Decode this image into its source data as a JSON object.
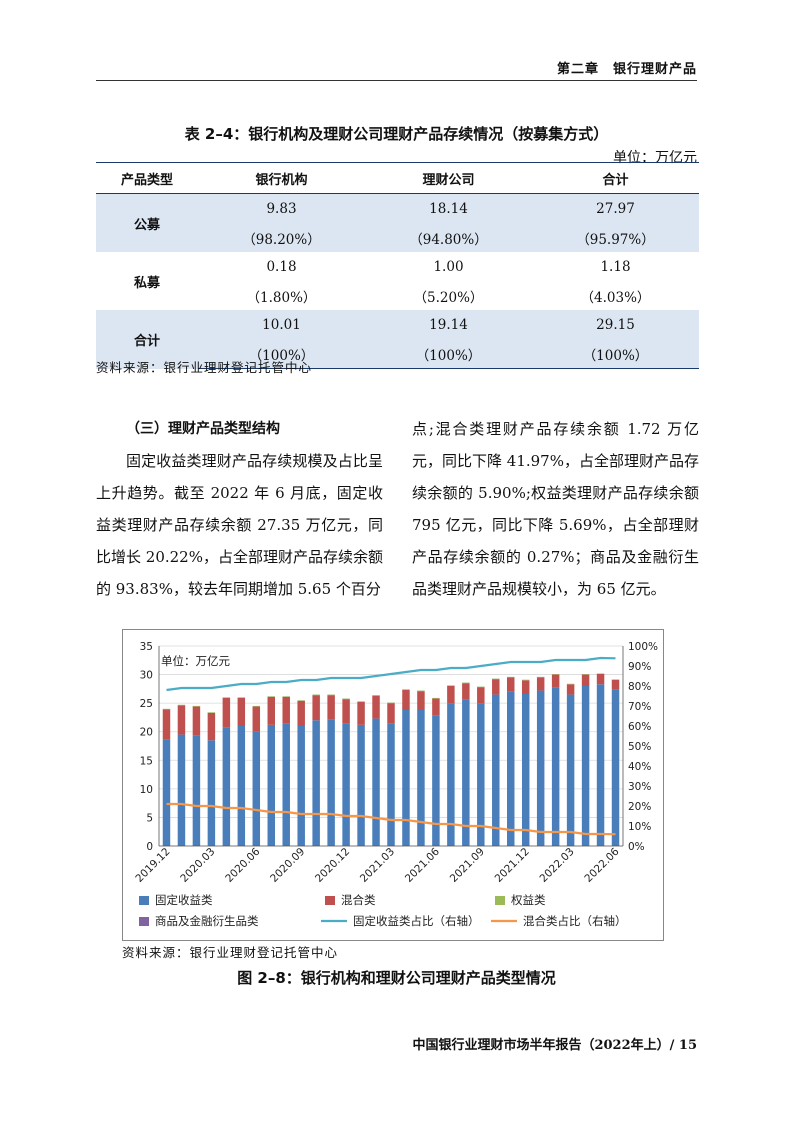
{
  "header": {
    "chapter": "第二章　银行理财产品"
  },
  "table": {
    "title": "表 2–4：银行机构及理财公司理财产品存续情况（按募集方式）",
    "unit": "单位：万亿元",
    "columns": [
      "产品类型",
      "银行机构",
      "理财公司",
      "合计"
    ],
    "rows": [
      {
        "label": "公募",
        "bank": "9.83",
        "bank_pct": "（98.20%）",
        "wm": "18.14",
        "wm_pct": "（94.80%）",
        "total": "27.97",
        "total_pct": "（95.97%）"
      },
      {
        "label": "私募",
        "bank": "0.18",
        "bank_pct": "（1.80%）",
        "wm": "1.00",
        "wm_pct": "（5.20%）",
        "total": "1.18",
        "total_pct": "（4.03%）"
      },
      {
        "label": "合计",
        "bank": "10.01",
        "bank_pct": "（100%）",
        "wm": "19.14",
        "wm_pct": "（100%）",
        "total": "29.15",
        "total_pct": "（100%）"
      }
    ],
    "source": "资料来源：银行业理财登记托管中心"
  },
  "body": {
    "subheading": "（三）理财产品类型结构",
    "paragraph_left": "固定收益类理财产品存续规模及占比呈上升趋势。截至 2022 年 6 月底，固定收益类理财产品存续余额 27.35 万亿元，同比增长 20.22%，占全部理财产品存续余额的 93.83%，较去年同期增加 5.65 个百分",
    "paragraph_right": "点;混合类理财产品存续余额 1.72 万亿元，同比下降 41.97%，占全部理财产品存续余额的 5.90%;权益类理财产品存续余额 795 亿元，同比下降 5.69%，占全部理财产品存续余额的 0.27%；商品及金融衍生品类理财产品规模较小，为 65 亿元。"
  },
  "chart_data": {
    "type": "bar",
    "unit_label": "单位：万亿元",
    "categories": [
      "2019.12",
      "2020.01",
      "2020.02",
      "2020.03",
      "2020.04",
      "2020.05",
      "2020.06",
      "2020.07",
      "2020.08",
      "2020.09",
      "2020.10",
      "2020.11",
      "2020.12",
      "2021.01",
      "2021.02",
      "2021.03",
      "2021.04",
      "2021.05",
      "2021.06",
      "2021.07",
      "2021.08",
      "2021.09",
      "2021.10",
      "2021.11",
      "2021.12",
      "2022.01",
      "2022.02",
      "2022.03",
      "2022.04",
      "2022.05",
      "2022.06"
    ],
    "x_tick_labels": [
      "2019.12",
      "2020.03",
      "2020.06",
      "2020.09",
      "2020.12",
      "2021.03",
      "2021.06",
      "2021.09",
      "2021.12",
      "2022.03",
      "2022.06"
    ],
    "series": [
      {
        "name": "固定收益类",
        "axis": "left",
        "kind": "bar",
        "color": "#4a7ebb",
        "values": [
          18.7,
          19.5,
          19.4,
          18.5,
          20.7,
          21.0,
          20.0,
          21.2,
          21.5,
          21.0,
          22.0,
          22.2,
          21.5,
          21.2,
          22.3,
          21.5,
          23.8,
          23.8,
          22.8,
          25.0,
          25.6,
          25.0,
          26.5,
          27.0,
          26.6,
          27.2,
          27.8,
          26.5,
          28.0,
          28.3,
          27.35
        ]
      },
      {
        "name": "混合类",
        "axis": "left",
        "kind": "bar",
        "color": "#c0504d",
        "values": [
          5.2,
          5.1,
          5.0,
          4.8,
          5.2,
          4.9,
          4.4,
          4.9,
          4.6,
          4.4,
          4.4,
          4.2,
          4.2,
          4.0,
          4.0,
          3.5,
          3.5,
          3.3,
          3.0,
          3.0,
          2.9,
          2.8,
          2.7,
          2.5,
          2.4,
          2.3,
          2.2,
          1.8,
          2.0,
          1.8,
          1.72
        ]
      },
      {
        "name": "权益类",
        "axis": "left",
        "kind": "bar",
        "color": "#9bbb59",
        "values": [
          0.1,
          0.1,
          0.1,
          0.1,
          0.1,
          0.1,
          0.1,
          0.1,
          0.1,
          0.1,
          0.1,
          0.1,
          0.1,
          0.1,
          0.1,
          0.1,
          0.1,
          0.1,
          0.1,
          0.09,
          0.09,
          0.09,
          0.09,
          0.09,
          0.09,
          0.09,
          0.08,
          0.08,
          0.08,
          0.08,
          0.08
        ]
      },
      {
        "name": "商品及金融衍生品类",
        "axis": "left",
        "kind": "bar",
        "color": "#8064a2",
        "values": [
          0.01,
          0.01,
          0.01,
          0.01,
          0.01,
          0.01,
          0.01,
          0.01,
          0.01,
          0.01,
          0.01,
          0.01,
          0.01,
          0.01,
          0.01,
          0.01,
          0.01,
          0.01,
          0.01,
          0.01,
          0.01,
          0.01,
          0.01,
          0.01,
          0.01,
          0.01,
          0.01,
          0.01,
          0.01,
          0.01,
          0.01
        ]
      },
      {
        "name": "固定收益类占比（右轴）",
        "axis": "right",
        "kind": "line",
        "color": "#4bacc6",
        "values": [
          0.78,
          0.79,
          0.79,
          0.79,
          0.8,
          0.81,
          0.81,
          0.82,
          0.82,
          0.83,
          0.83,
          0.84,
          0.84,
          0.84,
          0.85,
          0.86,
          0.87,
          0.88,
          0.88,
          0.89,
          0.89,
          0.9,
          0.91,
          0.92,
          0.92,
          0.92,
          0.93,
          0.93,
          0.93,
          0.94,
          0.9383
        ]
      },
      {
        "name": "混合类占比（右轴）",
        "axis": "right",
        "kind": "line",
        "color": "#f79646",
        "values": [
          0.21,
          0.21,
          0.2,
          0.2,
          0.19,
          0.19,
          0.18,
          0.17,
          0.17,
          0.16,
          0.16,
          0.16,
          0.15,
          0.15,
          0.14,
          0.13,
          0.13,
          0.12,
          0.11,
          0.11,
          0.1,
          0.1,
          0.09,
          0.08,
          0.08,
          0.07,
          0.07,
          0.07,
          0.06,
          0.06,
          0.059
        ]
      }
    ],
    "ylim_left": [
      0,
      35
    ],
    "yticks_left": [
      0,
      5,
      10,
      15,
      20,
      25,
      30,
      35
    ],
    "ylim_right": [
      0,
      1
    ],
    "yticks_right": [
      "0%",
      "10%",
      "20%",
      "30%",
      "40%",
      "50%",
      "60%",
      "70%",
      "80%",
      "90%",
      "100%"
    ],
    "grid": true,
    "legend_position": "bottom",
    "source": "资料来源：银行业理财登记托管中心",
    "figure_title": "图 2–8：银行机构和理财公司理财产品类型情况"
  },
  "footer": {
    "report": "中国银行业理财市场半年报告（2022年上）/ 15"
  }
}
